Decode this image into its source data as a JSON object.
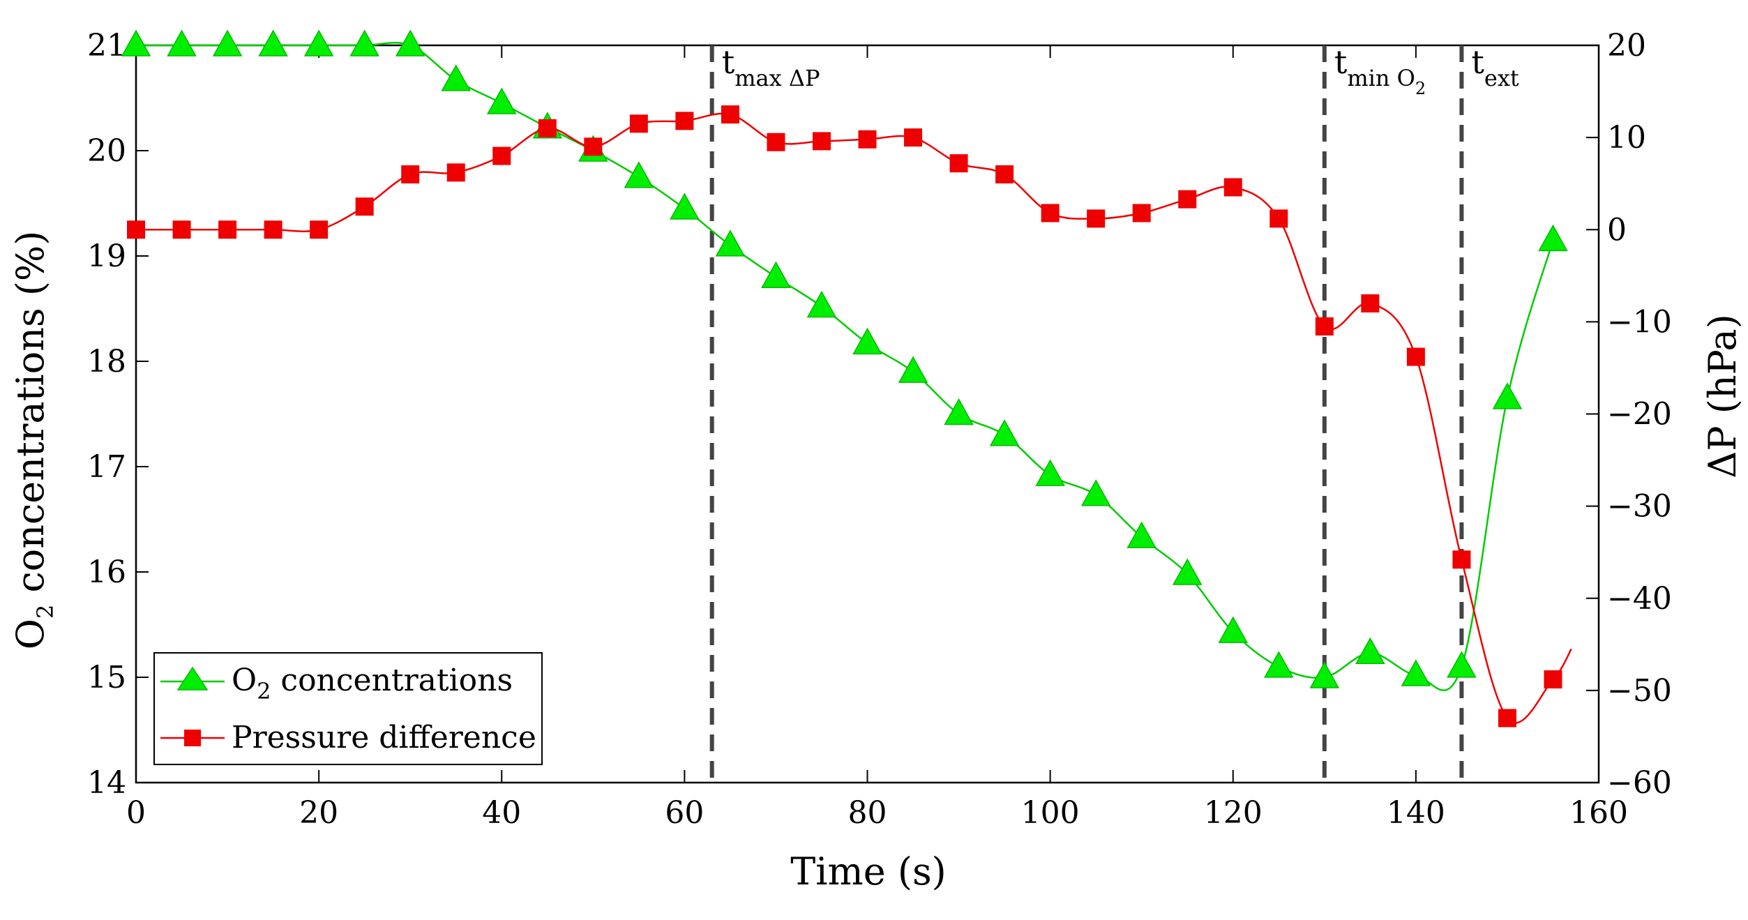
{
  "chart_data": {
    "type": "line",
    "x": [
      0,
      5,
      10,
      15,
      20,
      25,
      30,
      35,
      40,
      45,
      50,
      55,
      60,
      65,
      70,
      75,
      80,
      85,
      90,
      95,
      100,
      105,
      110,
      115,
      120,
      125,
      130,
      135,
      140,
      145,
      150,
      155
    ],
    "xlabel": "Time (s)",
    "xlim": [
      0,
      160
    ],
    "xticks": [
      0,
      20,
      40,
      60,
      80,
      100,
      120,
      140,
      160
    ],
    "y_left": {
      "label_main": "O",
      "label_sub": "2",
      "label_rest": " concentrations (%)",
      "lim": [
        14,
        21
      ],
      "ticks": [
        14,
        15,
        16,
        17,
        18,
        19,
        20,
        21
      ]
    },
    "y_right": {
      "label": "ΔP (hPa)",
      "lim": [
        -60,
        20
      ],
      "ticks": [
        -60,
        -50,
        -40,
        -30,
        -20,
        -10,
        0,
        10,
        20
      ],
      "tick_labels": [
        "−60",
        "−50",
        "−40",
        "−30",
        "−20",
        "−10",
        "0",
        "10",
        "20"
      ]
    },
    "series": [
      {
        "name_main": "O",
        "name_sub": "2",
        "name_rest": " concentrations",
        "axis": "left",
        "color": "#00ee00",
        "line_color": "#00cc00",
        "marker": "triangle",
        "x": [
          0,
          5,
          10,
          15,
          20,
          25,
          30,
          35,
          40,
          45,
          50,
          55,
          60,
          65,
          70,
          75,
          80,
          85,
          90,
          95,
          100,
          105,
          110,
          115,
          120,
          125,
          130,
          135,
          140,
          145,
          150,
          155
        ],
        "values": [
          21.0,
          21.0,
          21.0,
          21.0,
          21.0,
          21.0,
          21.0,
          20.67,
          20.45,
          20.22,
          20.0,
          19.75,
          19.45,
          19.1,
          18.8,
          18.52,
          18.17,
          17.9,
          17.5,
          17.3,
          16.92,
          16.73,
          16.33,
          15.98,
          15.43,
          15.1,
          15.0,
          15.23,
          15.02,
          15.1,
          17.65,
          19.15
        ]
      },
      {
        "name": "Pressure difference",
        "axis": "right",
        "color": "#ee0000",
        "line_color": "#ee0000",
        "marker": "square",
        "x": [
          0,
          5,
          10,
          15,
          20,
          25,
          30,
          35,
          40,
          45,
          50,
          55,
          60,
          65,
          70,
          75,
          80,
          85,
          90,
          95,
          100,
          105,
          110,
          115,
          120,
          125,
          130,
          135,
          140,
          145,
          150,
          155
        ],
        "values": [
          0,
          0,
          0,
          0,
          0,
          2.5,
          6,
          6.2,
          8,
          11,
          9,
          11.5,
          11.8,
          12.5,
          9.5,
          9.6,
          9.8,
          10,
          7.2,
          6,
          1.8,
          1.2,
          1.8,
          3.3,
          4.6,
          1.2,
          -10.5,
          -8,
          -13.8,
          -35.8,
          -53,
          -48.8
        ],
        "curve_tail": [
          [
            157,
            -45.5
          ]
        ]
      }
    ],
    "vlines": [
      {
        "x": 63,
        "label_main": "t",
        "label_sub": "max ΔP"
      },
      {
        "x": 130,
        "label_main": "t",
        "label_sub": "min O",
        "label_subsub": "2"
      },
      {
        "x": 145,
        "label_main": "t",
        "label_sub": "ext"
      }
    ],
    "legend": {
      "position": "bottom-left"
    }
  }
}
